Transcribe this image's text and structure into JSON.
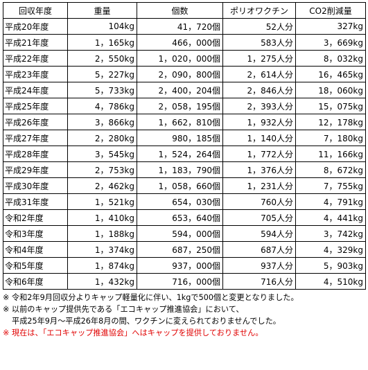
{
  "table": {
    "headers": [
      "回収年度",
      "重量",
      "個数",
      "ポリオワクチン",
      "CO2削減量"
    ],
    "rows": [
      [
        "平成20年度",
        "104kg",
        "41，720個",
        "52人分",
        "327kg"
      ],
      [
        "平成21年度",
        "1，165kg",
        "466，000個",
        "583人分",
        "3，669kg"
      ],
      [
        "平成22年度",
        "2，550kg",
        "1，020，000個",
        "1，275人分",
        "8，032kg"
      ],
      [
        "平成23年度",
        "5，227kg",
        "2，090，800個",
        "2，614人分",
        "16，465kg"
      ],
      [
        "平成24年度",
        "5，733kg",
        "2，400，204個",
        "2，846人分",
        "18，060kg"
      ],
      [
        "平成25年度",
        "4，786kg",
        "2，058，195個",
        "2，393人分",
        "15，075kg"
      ],
      [
        "平成26年度",
        "3，866kg",
        "1，662，810個",
        "1，932人分",
        "12，178kg"
      ],
      [
        "平成27年度",
        "2，280kg",
        "980，185個",
        "1，140人分",
        "7，180kg"
      ],
      [
        "平成28年度",
        "3，545kg",
        "1，524，264個",
        "1，772人分",
        "11，166kg"
      ],
      [
        "平成29年度",
        "2，753kg",
        "1，183，790個",
        "1，376人分",
        "8，672kg"
      ],
      [
        "平成30年度",
        "2，462kg",
        "1，058，660個",
        "1，231人分",
        "7，755kg"
      ],
      [
        "平成31年度",
        "1，521kg",
        "654，030個",
        "760人分",
        "4，791kg"
      ],
      [
        "令和2年度",
        "1，410kg",
        "653，640個",
        "705人分",
        "4，441kg"
      ],
      [
        "令和3年度",
        "1，188kg",
        "594，000個",
        "594人分",
        "3，742kg"
      ],
      [
        "令和4年度",
        "1，374kg",
        "687，250個",
        "687人分",
        "4，329kg"
      ],
      [
        "令和5年度",
        "1，874kg",
        "937，000個",
        "937人分",
        "5，903kg"
      ],
      [
        "令和6年度",
        "1，432kg",
        "716，000個",
        "716人分",
        "4，510kg"
      ]
    ]
  },
  "notes": {
    "note1": "※ 令和2年9月回収分よりキャップ軽量化に伴い、1kgで500個と変更となりました。",
    "note2_line1": "※ 以前のキャップ提供先である「エコキャップ推進協会」において、",
    "note2_line2": "平成25年9月～平成26年8月の間、ワクチンに変えられておりませんでした。",
    "note3": "※ 現在は、「エコキャップ推進協会」へはキャップを提供しておりません。"
  },
  "colors": {
    "warning_text": "#e00000",
    "border": "#000000"
  }
}
